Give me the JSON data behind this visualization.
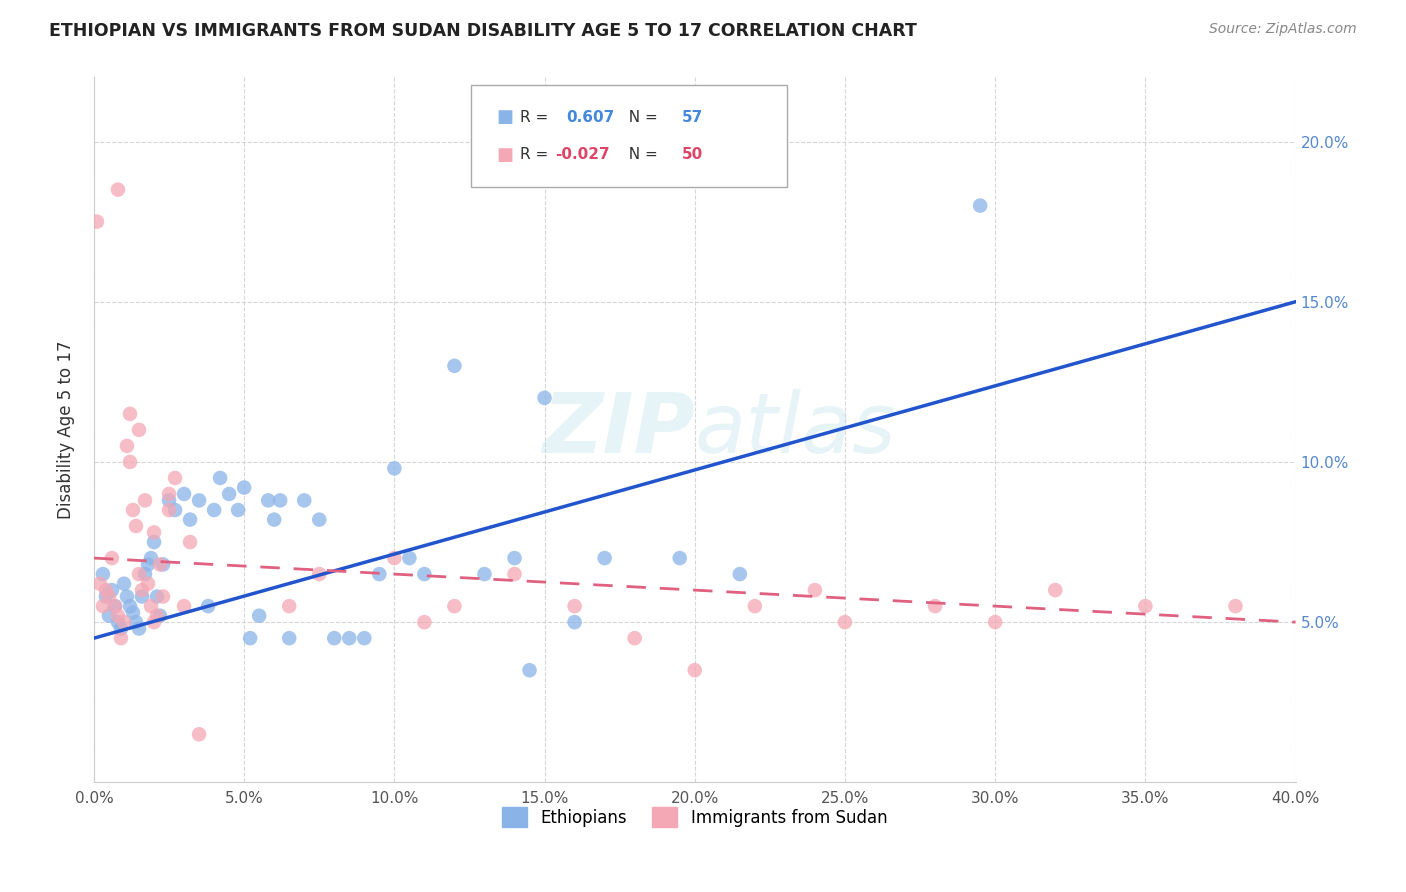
{
  "title": "ETHIOPIAN VS IMMIGRANTS FROM SUDAN DISABILITY AGE 5 TO 17 CORRELATION CHART",
  "source": "Source: ZipAtlas.com",
  "ylabel": "Disability Age 5 to 17",
  "xlabel_vals": [
    0.0,
    5.0,
    10.0,
    15.0,
    20.0,
    25.0,
    30.0,
    35.0,
    40.0
  ],
  "ylabel_vals": [
    5.0,
    10.0,
    15.0,
    20.0
  ],
  "xlim": [
    0.0,
    40.0
  ],
  "ylim": [
    0.0,
    22.0
  ],
  "ethiopians_R": 0.607,
  "ethiopians_N": 57,
  "sudanese_R": -0.027,
  "sudanese_N": 50,
  "ethiopians_color": "#8ab4e8",
  "sudanese_color": "#f4a7b4",
  "ethiopians_line_color": "#2255cc",
  "sudanese_line_color": "#e06080",
  "watermark": "ZIPatlas",
  "eth_line_x0": 0.0,
  "eth_line_y0": 4.5,
  "eth_line_x1": 40.0,
  "eth_line_y1": 15.0,
  "sud_line_x0": 0.0,
  "sud_line_y0": 7.0,
  "sud_line_x1": 40.0,
  "sud_line_y1": 5.0,
  "ethiopians_x": [
    0.3,
    0.4,
    0.5,
    0.6,
    0.7,
    0.8,
    0.9,
    1.0,
    1.1,
    1.2,
    1.3,
    1.4,
    1.5,
    1.6,
    1.7,
    1.8,
    1.9,
    2.0,
    2.1,
    2.2,
    2.3,
    2.5,
    2.7,
    3.0,
    3.2,
    3.5,
    3.8,
    4.0,
    4.2,
    4.5,
    4.8,
    5.0,
    5.2,
    5.5,
    5.8,
    6.0,
    6.2,
    6.5,
    7.0,
    7.5,
    8.0,
    8.5,
    9.0,
    9.5,
    10.0,
    10.5,
    11.0,
    12.0,
    13.0,
    14.0,
    14.5,
    15.0,
    16.0,
    17.0,
    19.5,
    21.5,
    29.5
  ],
  "ethiopians_y": [
    6.5,
    5.8,
    5.2,
    6.0,
    5.5,
    5.0,
    4.8,
    6.2,
    5.8,
    5.5,
    5.3,
    5.0,
    4.8,
    5.8,
    6.5,
    6.8,
    7.0,
    7.5,
    5.8,
    5.2,
    6.8,
    8.8,
    8.5,
    9.0,
    8.2,
    8.8,
    5.5,
    8.5,
    9.5,
    9.0,
    8.5,
    9.2,
    4.5,
    5.2,
    8.8,
    8.2,
    8.8,
    4.5,
    8.8,
    8.2,
    4.5,
    4.5,
    4.5,
    6.5,
    9.8,
    7.0,
    6.5,
    13.0,
    6.5,
    7.0,
    3.5,
    12.0,
    5.0,
    7.0,
    7.0,
    6.5,
    18.0
  ],
  "sudanese_x": [
    0.1,
    0.2,
    0.3,
    0.4,
    0.5,
    0.6,
    0.7,
    0.8,
    0.9,
    1.0,
    1.1,
    1.2,
    1.3,
    1.4,
    1.5,
    1.6,
    1.7,
    1.8,
    1.9,
    2.0,
    2.1,
    2.2,
    2.3,
    2.5,
    2.7,
    3.0,
    3.5,
    6.5,
    7.5,
    10.0,
    11.0,
    12.0,
    14.0,
    16.0,
    18.0,
    20.0,
    22.0,
    24.0,
    25.0,
    28.0,
    30.0,
    32.0,
    35.0,
    38.0,
    0.8,
    1.2,
    1.5,
    2.0,
    2.5,
    3.2
  ],
  "sudanese_y": [
    17.5,
    6.2,
    5.5,
    6.0,
    5.8,
    7.0,
    5.5,
    5.2,
    4.5,
    5.0,
    10.5,
    10.0,
    8.5,
    8.0,
    6.5,
    6.0,
    8.8,
    6.2,
    5.5,
    5.0,
    5.2,
    6.8,
    5.8,
    9.0,
    9.5,
    5.5,
    1.5,
    5.5,
    6.5,
    7.0,
    5.0,
    5.5,
    6.5,
    5.5,
    4.5,
    3.5,
    5.5,
    6.0,
    5.0,
    5.5,
    5.0,
    6.0,
    5.5,
    5.5,
    18.5,
    11.5,
    11.0,
    7.8,
    8.5,
    7.5
  ]
}
